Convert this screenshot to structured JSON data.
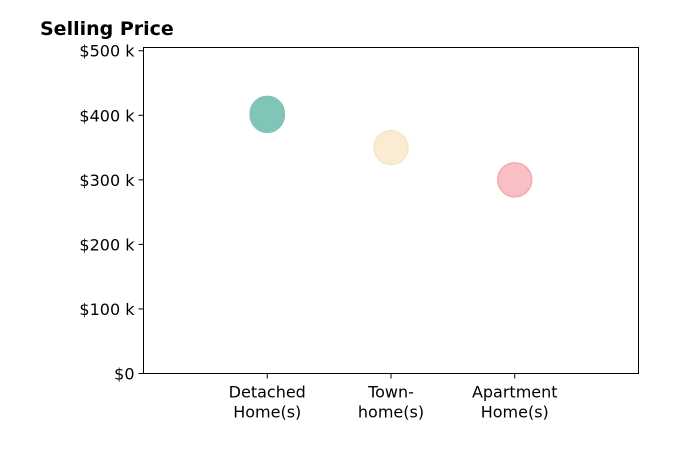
{
  "chart_data": {
    "type": "scatter",
    "title": "Selling Price",
    "xlabel": "",
    "ylabel": "",
    "categories": [
      [
        "Detached",
        "Home(s)"
      ],
      [
        "Town-",
        "home(s)"
      ],
      [
        "Apartment",
        "Home(s)"
      ]
    ],
    "points": [
      {
        "category": 0,
        "values": [
          400000,
          401000,
          403000
        ],
        "color": "#7fc4b8"
      },
      {
        "category": 1,
        "values": [
          350000
        ],
        "color": "#f7e6c4"
      },
      {
        "category": 2,
        "values": [
          300000
        ],
        "color": "#f5aab1"
      }
    ],
    "ylim": [
      0,
      505000
    ],
    "xlim": [
      -1,
      3
    ],
    "yticks": [
      {
        "value": 0,
        "label": "$0"
      },
      {
        "value": 100000,
        "label": "$100 k"
      },
      {
        "value": 200000,
        "label": "$200 k"
      },
      {
        "value": 300000,
        "label": "$300 k"
      },
      {
        "value": 400000,
        "label": "$400 k"
      },
      {
        "value": 500000,
        "label": "$500 k"
      }
    ],
    "grid": false,
    "legend": "none"
  }
}
